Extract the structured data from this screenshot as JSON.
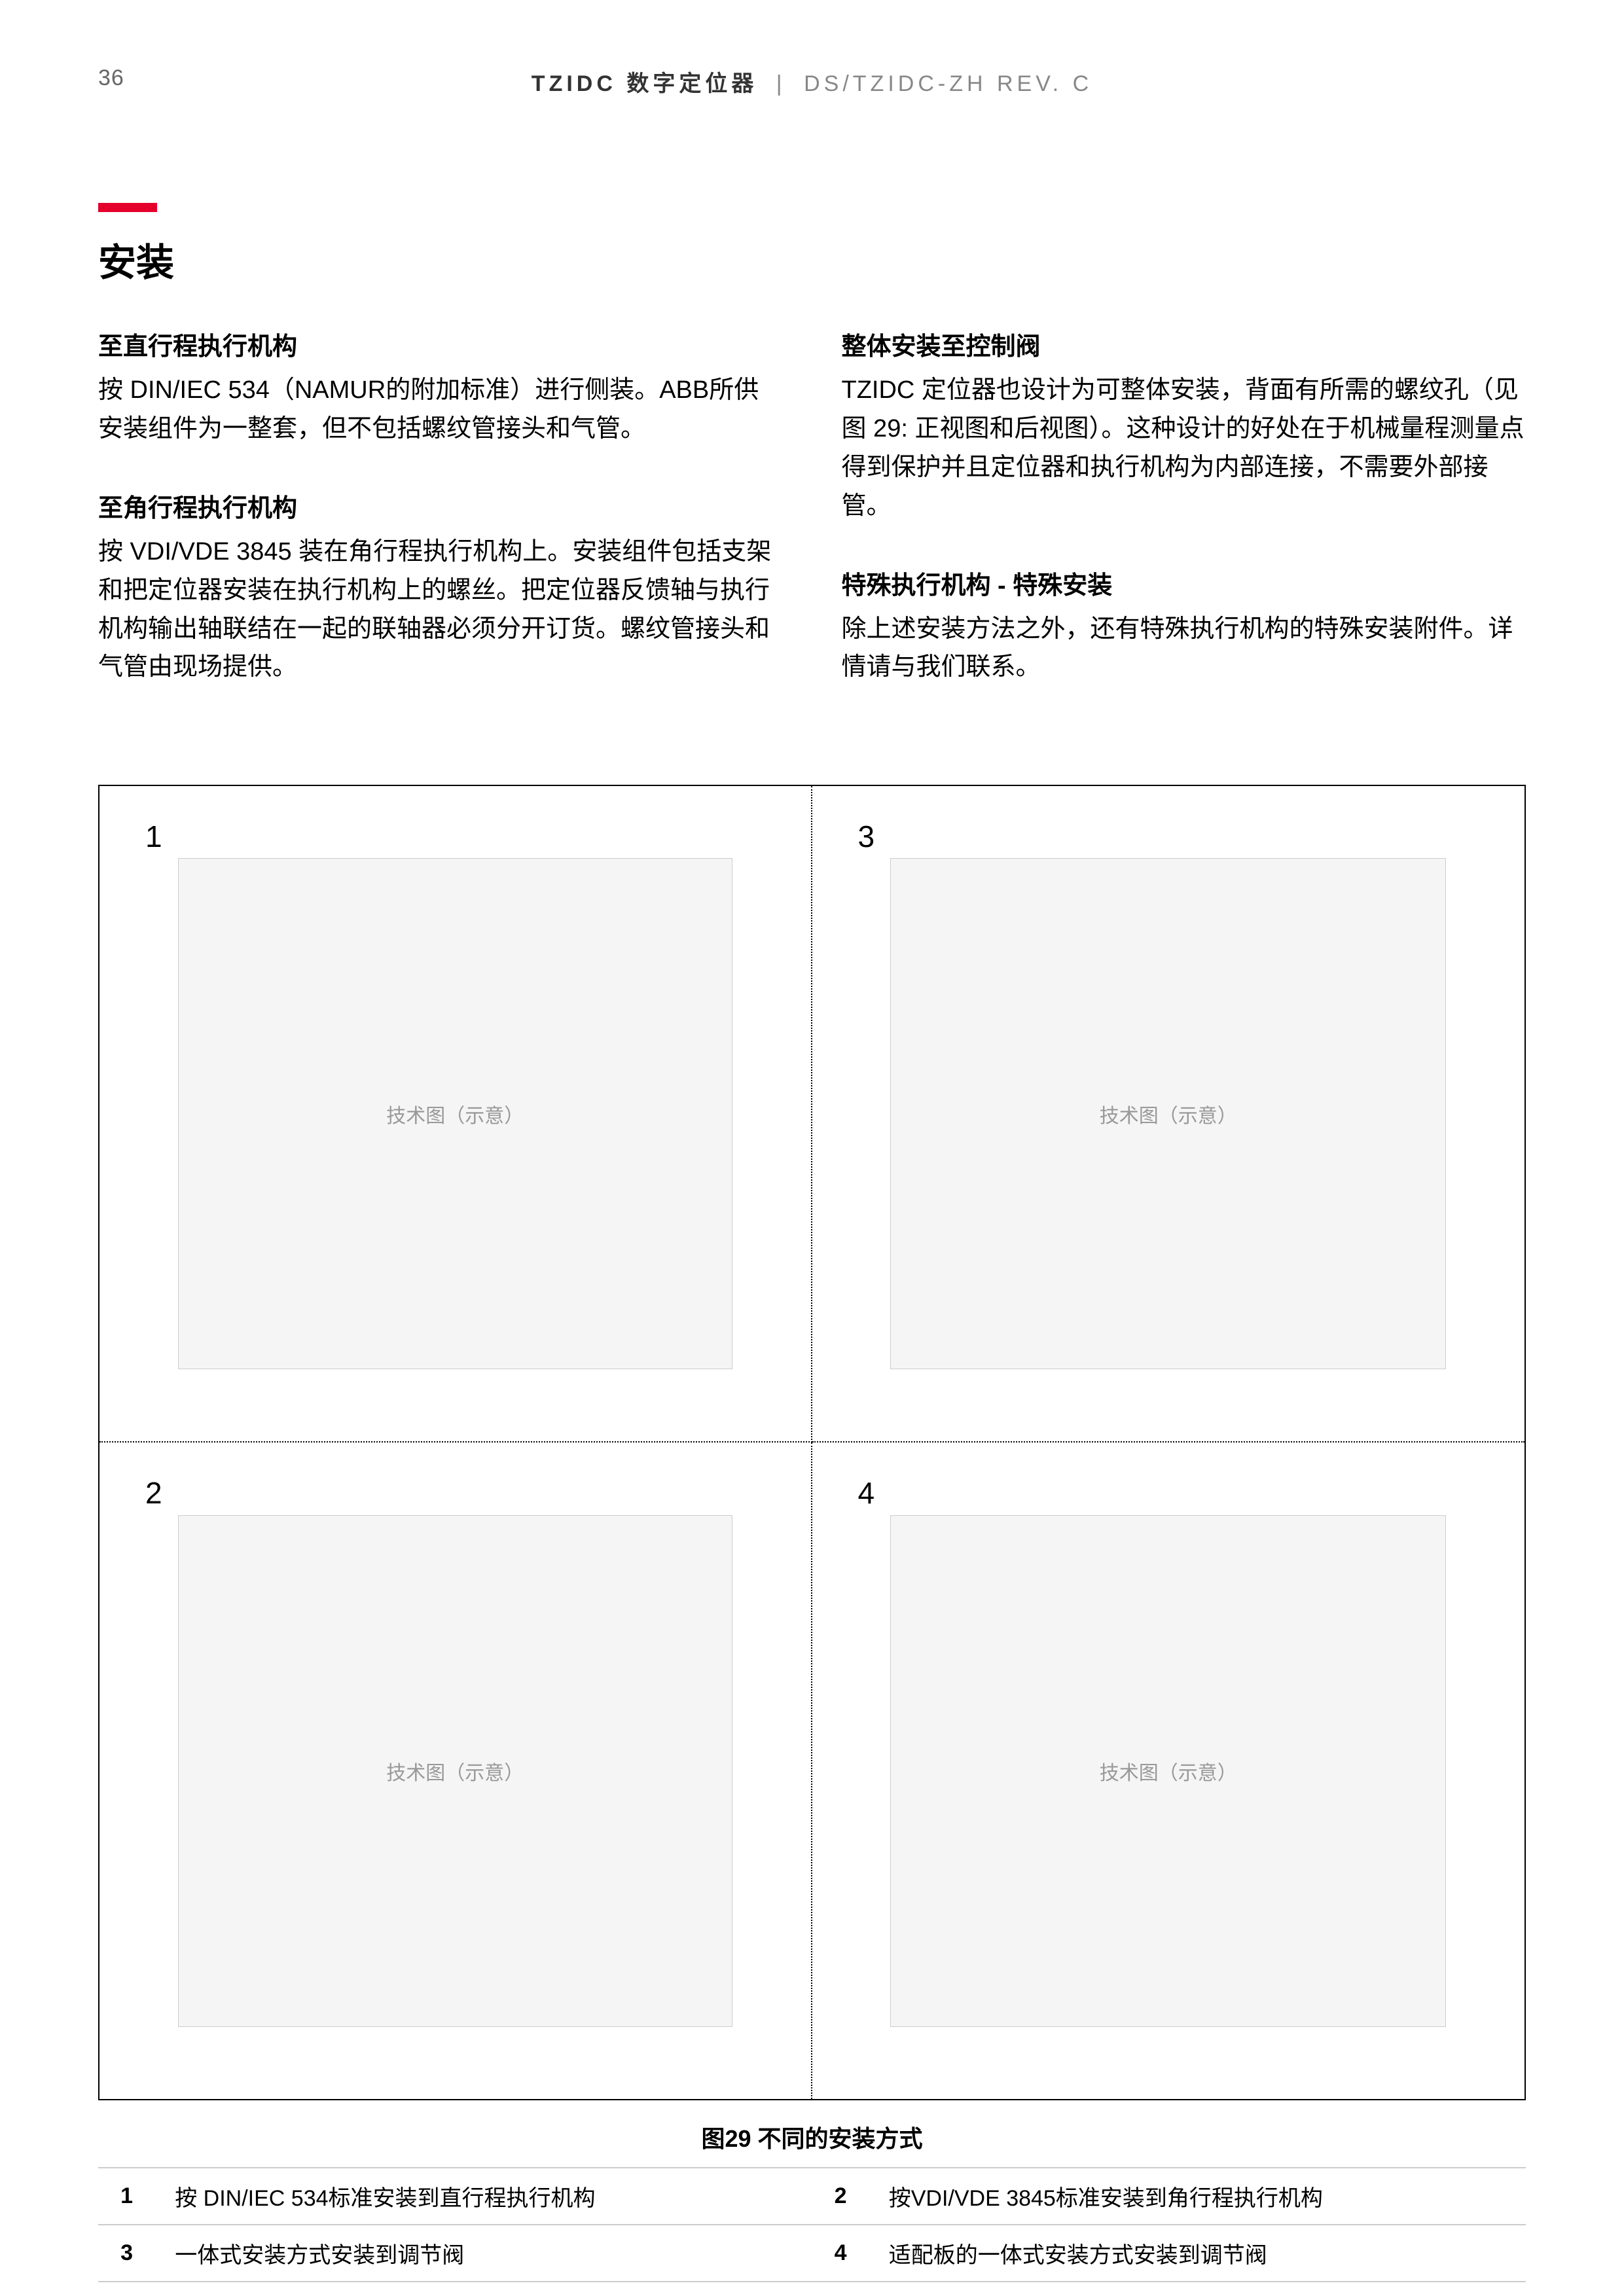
{
  "page": {
    "number": "36",
    "doc_title_bold": "TZIDC 数字定位器",
    "doc_title_separator": "|",
    "doc_title_rev": "DS/TZIDC-ZH REV. C"
  },
  "colors": {
    "accent": "#e4002b",
    "text": "#000000",
    "muted": "#888888",
    "border": "#cccccc",
    "background": "#ffffff"
  },
  "heading": "安装",
  "left_column": [
    {
      "title": "至直行程执行机构",
      "body": "按 DIN/IEC 534（NAMUR的附加标准）进行侧装。ABB所供安装组件为一整套，但不包括螺纹管接头和气管。"
    },
    {
      "title": "至角行程执行机构",
      "body": "按 VDI/VDE 3845 装在角行程执行机构上。安装组件包括支架和把定位器安装在执行机构上的螺丝。把定位器反馈轴与执行机构输出轴联结在一起的联轴器必须分开订货。螺纹管接头和气管由现场提供。"
    }
  ],
  "right_column": [
    {
      "title": "整体安装至控制阀",
      "body": "TZIDC 定位器也设计为可整体安装，背面有所需的螺纹孔（见图 29: 正视图和后视图）。这种设计的好处在于机械量程测量点得到保护并且定位器和执行机构为内部连接，不需要外部接管。"
    },
    {
      "title": "特殊执行机构 - 特殊安装",
      "body": "除上述安装方法之外，还有特殊执行机构的特殊安装附件。详情请与我们联系。"
    }
  ],
  "figure": {
    "cells": [
      "1",
      "2",
      "3",
      "4"
    ],
    "placeholder_label": "技术图（示意）",
    "caption": "图29 不同的安装方式",
    "legend": [
      {
        "num": "1",
        "desc": "按 DIN/IEC 534标准安装到直行程执行机构"
      },
      {
        "num": "2",
        "desc": "按VDI/VDE 3845标准安装到角行程执行机构"
      },
      {
        "num": "3",
        "desc": "一体式安装方式安装到调节阀"
      },
      {
        "num": "4",
        "desc": "适配板的一体式安装方式安装到调节阀"
      }
    ]
  }
}
